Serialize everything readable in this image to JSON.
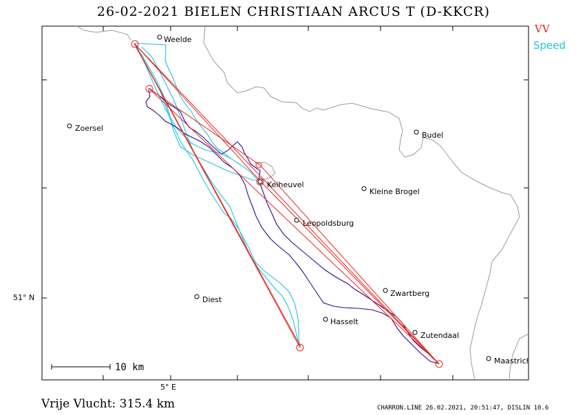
{
  "title": "26-02-2021   BIELEN CHRISTIAAN   ARCUS T (D-KKCR)",
  "legend": {
    "vv": "VV",
    "speed": "Speed"
  },
  "colors": {
    "vv": "#e8231b",
    "speed": "#1ec4e0",
    "track": "#2a0a8c",
    "border": "#9a9a9a"
  },
  "axis": {
    "lat_label": "51° N",
    "lon_label": "5° E"
  },
  "scale_bar": {
    "label": "10 km"
  },
  "places": [
    {
      "name": "Weelde"
    },
    {
      "name": "Zoersel"
    },
    {
      "name": "Budel"
    },
    {
      "name": "Keiheuvel"
    },
    {
      "name": "Kleine Brogel"
    },
    {
      "name": "Leopoldsburg"
    },
    {
      "name": "Zwartberg"
    },
    {
      "name": "Diest"
    },
    {
      "name": "Hasselt"
    },
    {
      "name": "Zutendaal"
    },
    {
      "name": "Maastricht"
    }
  ],
  "footer": {
    "distance": "Vrije Vlucht:  315.4 km",
    "credit": "CHARRON.LINE 26.02.2021, 20:51:47, DISLIN 10.6"
  }
}
